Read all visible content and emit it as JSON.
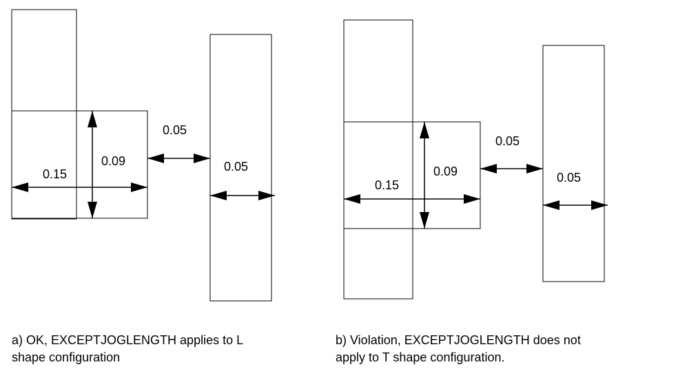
{
  "diagram_a": {
    "dim_width": "0.15",
    "dim_height": "0.09",
    "dim_spacing": "0.05",
    "dim_wire_width": "0.05",
    "caption": "a) OK, EXCEPTJOGLENGTH applies to L\nshape configuration"
  },
  "diagram_b": {
    "dim_width": "0.15",
    "dim_height": "0.09",
    "dim_spacing": "0.05",
    "dim_wire_width": "0.05",
    "caption": "b) Violation, EXCEPTJOGLENGTH does not\napply to T shape configuration."
  }
}
